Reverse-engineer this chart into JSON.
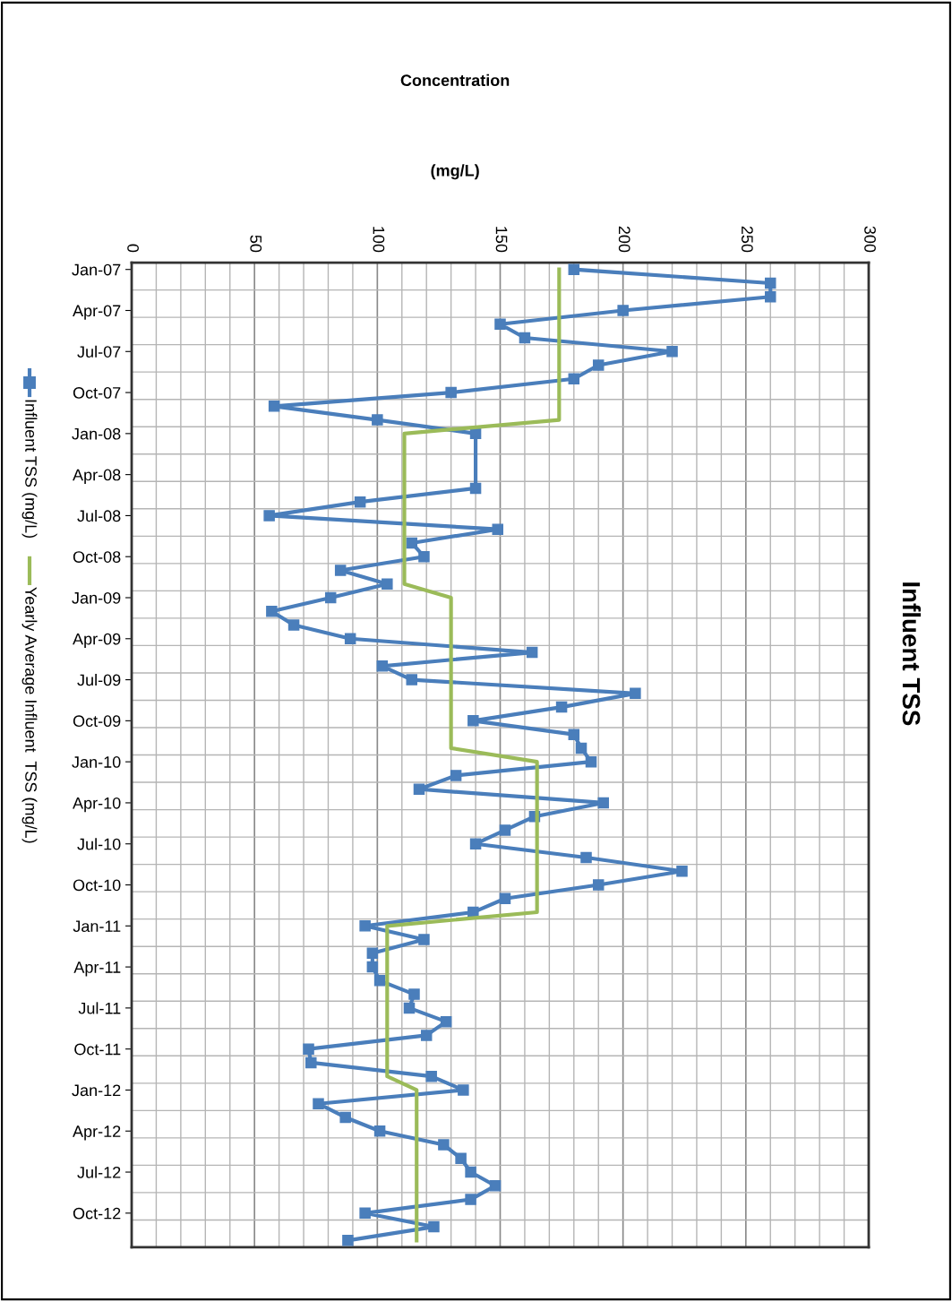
{
  "chart_data": {
    "type": "line",
    "title": "Influent TSS",
    "xlabel": "Concentration\n(mg/L)",
    "orientation": "horizontal",
    "categories": [
      "Jan-07",
      null,
      null,
      "Apr-07",
      null,
      null,
      "Jul-07",
      null,
      null,
      "Oct-07",
      null,
      null,
      "Jan-08",
      null,
      null,
      "Apr-08",
      null,
      null,
      "Jul-08",
      null,
      null,
      "Oct-08",
      null,
      null,
      "Jan-09",
      null,
      null,
      "Apr-09",
      null,
      null,
      "Jul-09",
      null,
      null,
      "Oct-09",
      null,
      null,
      "Jan-10",
      null,
      null,
      "Apr-10",
      null,
      null,
      "Jul-10",
      null,
      null,
      "Oct-10",
      null,
      null,
      "Jan-11",
      null,
      null,
      "Apr-11",
      null,
      null,
      "Jul-11",
      null,
      null,
      "Oct-11",
      null,
      null,
      "Jan-12",
      null,
      null,
      "Apr-12",
      null,
      null,
      "Jul-12",
      null,
      null,
      "Oct-12",
      null,
      null
    ],
    "series": [
      {
        "name": "Influent TSS (mg/L)",
        "color": "#4a7ebb",
        "marker": "square",
        "values": [
          180,
          260,
          260,
          200,
          150,
          160,
          220,
          190,
          180,
          130,
          58,
          100,
          140,
          null,
          null,
          null,
          140,
          93,
          56,
          149,
          114,
          119,
          85,
          104,
          81,
          57,
          66,
          89,
          163,
          102,
          114,
          205,
          175,
          139,
          180,
          183,
          187,
          132,
          117,
          192,
          164,
          152,
          140,
          185,
          224,
          190,
          152,
          139,
          95,
          119,
          98,
          98,
          101,
          115,
          113,
          128,
          120,
          72,
          73,
          122,
          135,
          76,
          87,
          101,
          127,
          134,
          138,
          148,
          138,
          95,
          123,
          88
        ]
      },
      {
        "name": "Yearly Average Influent  TSS (mg/L)",
        "color": "#9bbb59",
        "marker": "none",
        "values": [
          174,
          174,
          174,
          174,
          174,
          174,
          174,
          174,
          174,
          174,
          174,
          174,
          111,
          111,
          111,
          111,
          111,
          111,
          111,
          111,
          111,
          111,
          111,
          111,
          130,
          130,
          130,
          130,
          130,
          130,
          130,
          130,
          130,
          130,
          130,
          130,
          165,
          165,
          165,
          165,
          165,
          165,
          165,
          165,
          165,
          165,
          165,
          165,
          104,
          104,
          104,
          104,
          104,
          104,
          104,
          104,
          104,
          104,
          104,
          104,
          116,
          116,
          116,
          116,
          116,
          116,
          116,
          116,
          116,
          116,
          116,
          116
        ]
      }
    ],
    "xlim": [
      0,
      300
    ],
    "xticks": [
      0,
      {
        "value": 10,
        "label": null
      },
      {
        "value": 20,
        "label": null
      },
      {
        "value": 30,
        "label": null
      },
      {
        "value": 40,
        "label": null
      },
      50,
      {
        "value": 60,
        "label": null
      },
      {
        "value": 70,
        "label": null
      },
      {
        "value": 80,
        "label": null
      },
      {
        "value": 90,
        "label": null
      },
      100,
      {
        "value": 110,
        "label": null
      },
      {
        "value": 120,
        "label": null
      },
      {
        "value": 130,
        "label": null
      },
      {
        "value": 140,
        "label": null
      },
      150,
      {
        "value": 160,
        "label": null
      },
      {
        "value": 170,
        "label": null
      },
      {
        "value": 180,
        "label": null
      },
      {
        "value": 190,
        "label": null
      },
      200,
      {
        "value": 210,
        "label": null
      },
      {
        "value": 220,
        "label": null
      },
      {
        "value": 230,
        "label": null
      },
      {
        "value": 240,
        "label": null
      },
      250,
      {
        "value": 260,
        "label": null
      },
      {
        "value": 270,
        "label": null
      },
      {
        "value": 280,
        "label": null
      },
      {
        "value": 290,
        "label": null
      },
      300
    ],
    "grid": true,
    "legend": "left"
  }
}
